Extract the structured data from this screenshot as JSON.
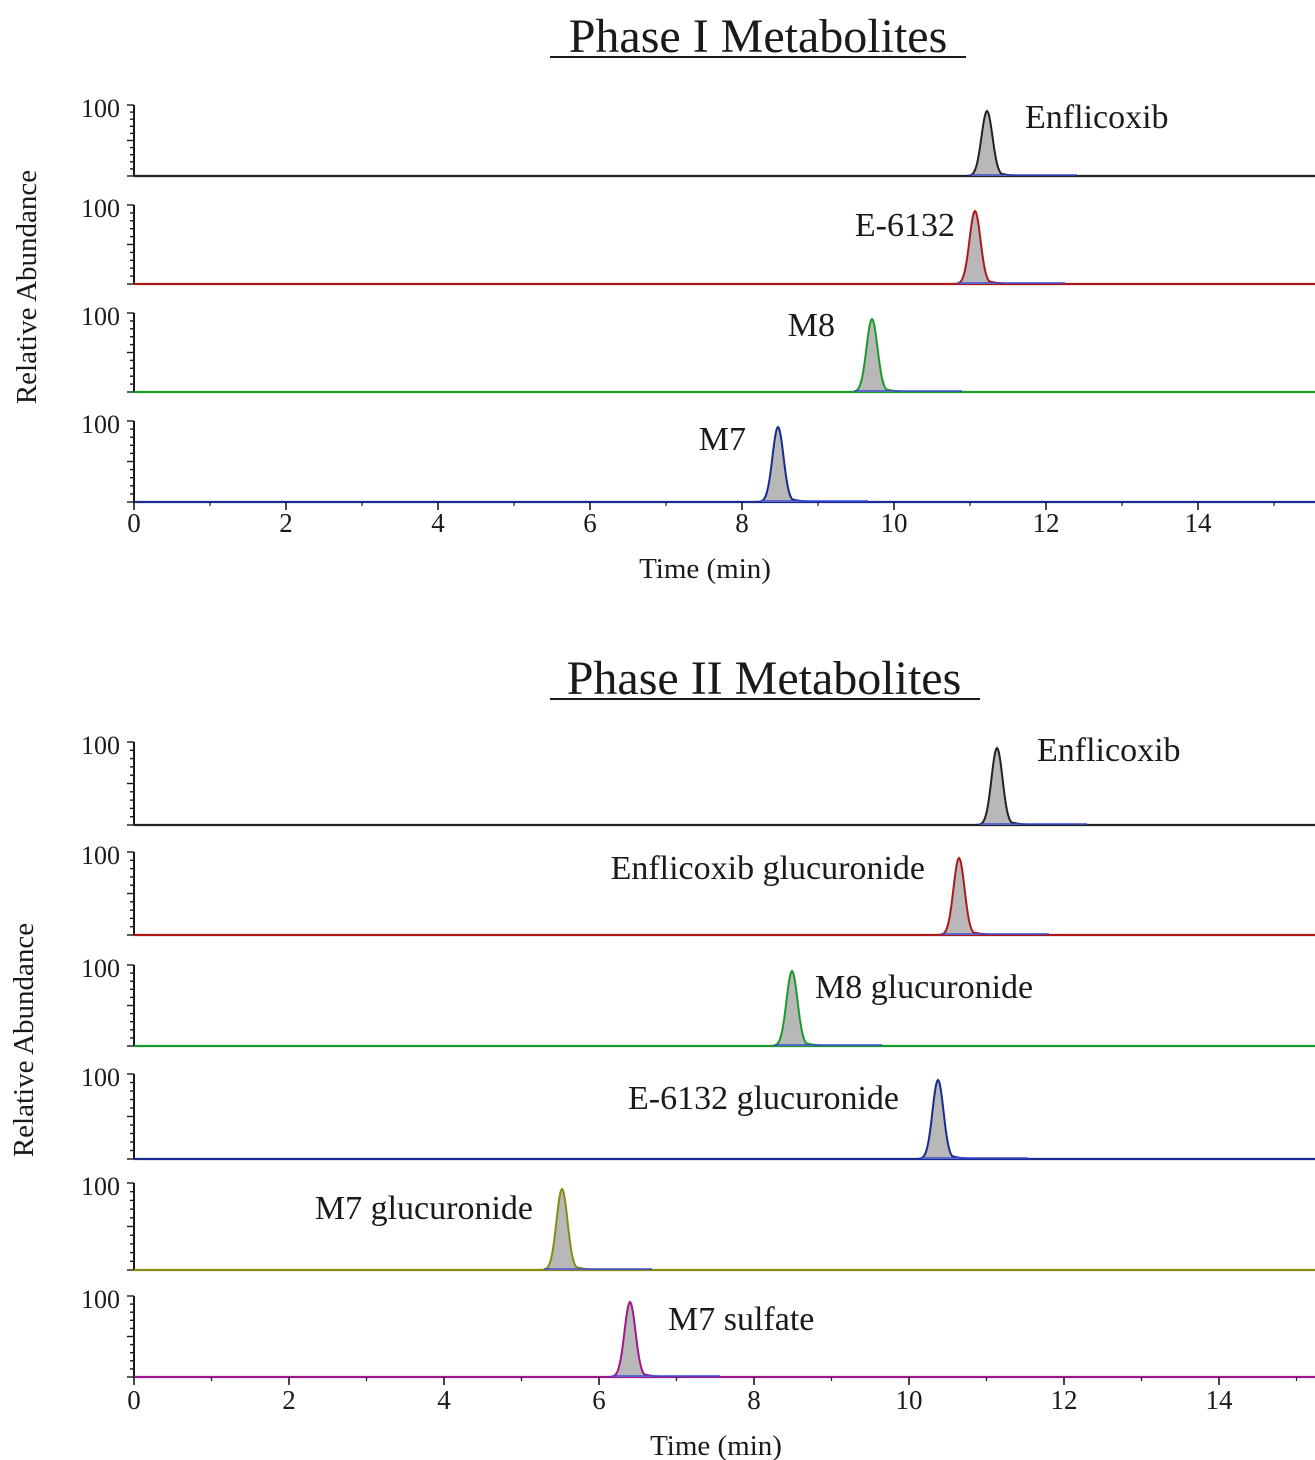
{
  "chart_data": [
    {
      "type": "line",
      "title": "Phase I Metabolites",
      "xlabel": "Time (min)",
      "ylabel": "Relative Abundance",
      "xlim": [
        0,
        15.5
      ],
      "x_ticks": [
        0,
        2,
        4,
        6,
        8,
        10,
        12,
        14
      ],
      "y_max_label": "100",
      "grid": false,
      "traces": [
        {
          "label": "Enflicoxib",
          "color": "#222222",
          "peak_time": 11.2
        },
        {
          "label": "E-6132",
          "color": "#b01818",
          "peak_time": 11.0
        },
        {
          "label": "M8",
          "color": "#1a9a2a",
          "peak_time": 9.75
        },
        {
          "label": "M7",
          "color": "#1a2a90",
          "peak_time": 8.5
        }
      ]
    },
    {
      "type": "line",
      "title": "Phase II Metabolites",
      "xlabel": "Time (min)",
      "ylabel": "Relative Abundance",
      "xlim": [
        0,
        15.5
      ],
      "x_ticks": [
        0,
        2,
        4,
        6,
        8,
        10,
        12,
        14
      ],
      "y_max_label": "100",
      "grid": false,
      "traces": [
        {
          "label": "Enflicoxib",
          "color": "#222222",
          "peak_time": 11.2
        },
        {
          "label": "Enflicoxib glucuronide",
          "color": "#b01818",
          "peak_time": 10.6
        },
        {
          "label": "M8 glucuronide",
          "color": "#1a9a2a",
          "peak_time": 8.5
        },
        {
          "label": "E-6132 glucuronide",
          "color": "#1a2a90",
          "peak_time": 10.4
        },
        {
          "label": "M7 glucuronide",
          "color": "#8a8a10",
          "peak_time": 5.5
        },
        {
          "label": "M7 sulfate",
          "color": "#a01890",
          "peak_time": 6.4
        }
      ]
    }
  ]
}
